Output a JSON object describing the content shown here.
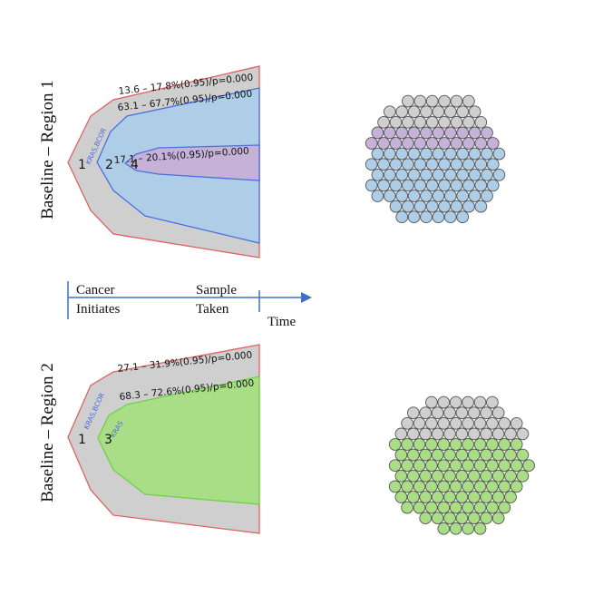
{
  "colors": {
    "grey_clone": "#cfcfcf",
    "grey_stroke": "#555555",
    "blue_clone": "#aecde6",
    "purple_clone": "#c6b2d8",
    "green_clone": "#a9dd86",
    "outer_outline": "#e06060",
    "blue_outline": "#4d6fe0",
    "green_outline": "#6fd04a",
    "axis": "#3f6fc4"
  },
  "panels": [
    {
      "side_label": "Baseline – Region 1",
      "node_labels": [
        "1",
        "2",
        "4"
      ],
      "driver_label": "KRAS,BCOR",
      "annotations": [
        "13.6 – 17.8%(0.95)/p=0.000",
        "63.1 – 67.7%(0.95)/p=0.000",
        "17.1 – 20.1%(0.95)/p=0.000"
      ],
      "clone_colors": [
        "grey",
        "blue",
        "purple"
      ]
    },
    {
      "side_label": "Baseline – Region 2",
      "node_labels": [
        "1",
        "3"
      ],
      "driver_labels": [
        "KRAS,BCOR",
        "KRAS"
      ],
      "annotations": [
        "27.1 – 31.9%(0.95)/p=0.000",
        "68.3 – 72.6%(0.95)/p=0.000"
      ],
      "clone_colors": [
        "grey",
        "green"
      ]
    }
  ],
  "timeline": {
    "start_label": "Cancer",
    "start_label_2": "Initiates",
    "sample_label": "Sample",
    "sample_label_2": "Taken",
    "axis_label": "Time"
  }
}
